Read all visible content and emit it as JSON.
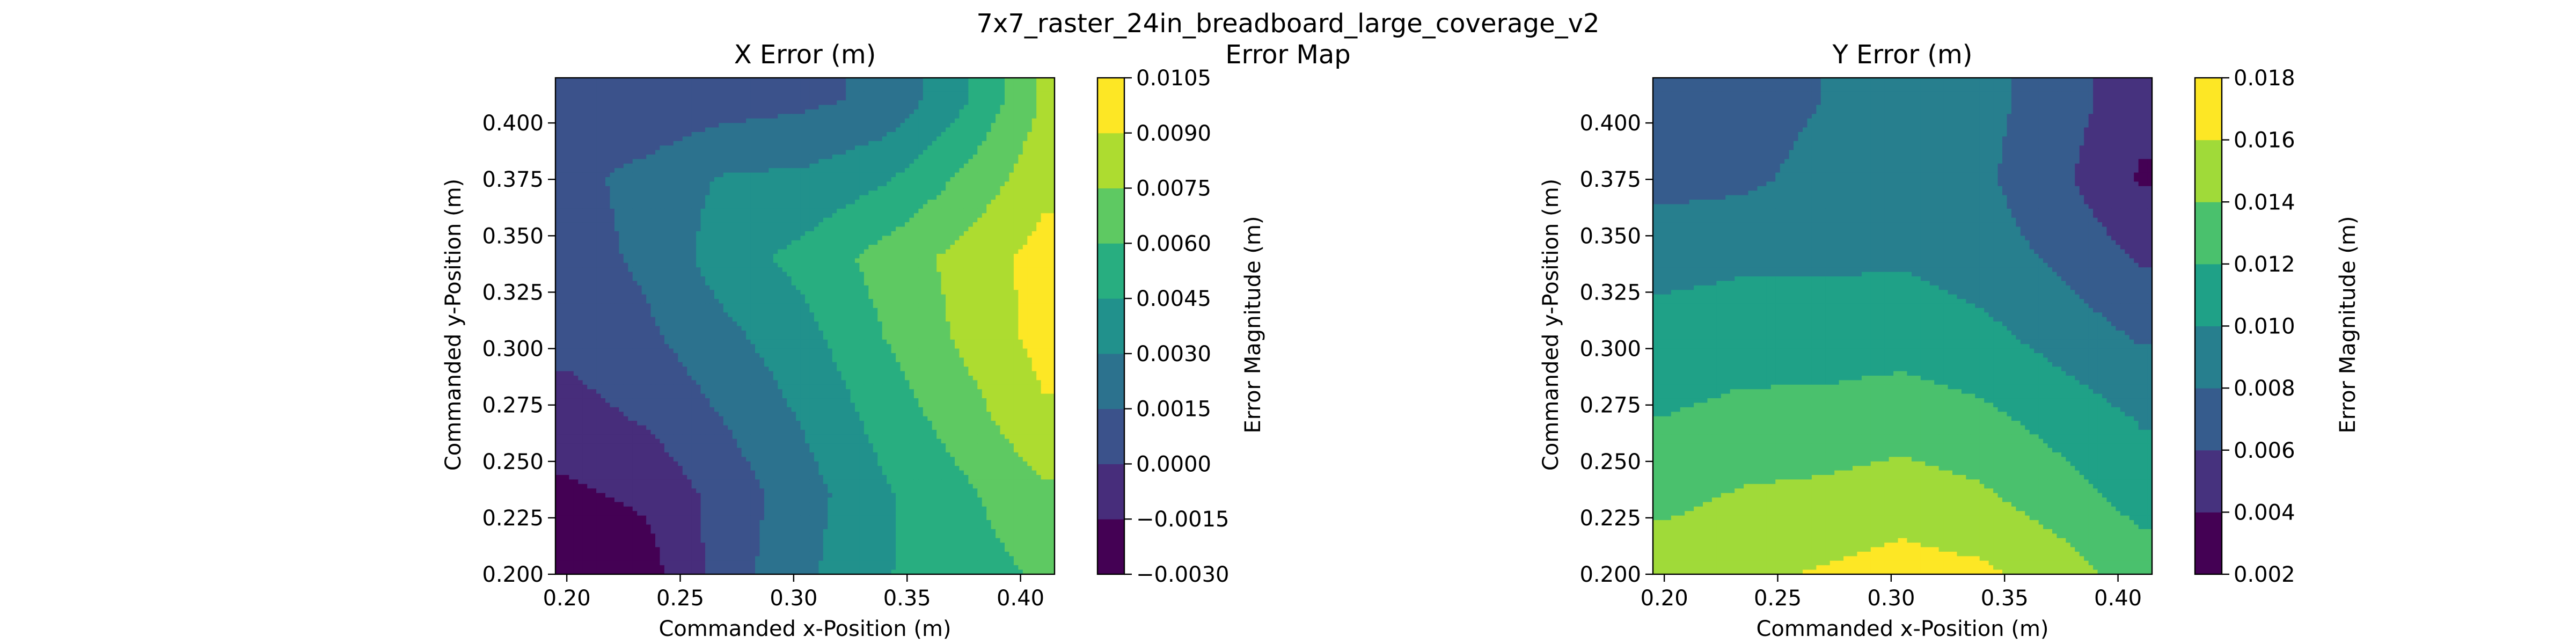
{
  "figure": {
    "title_line1": "7x7_raster_24in_breadboard_large_coverage_v2",
    "title_line2": "Error Map"
  },
  "chart_data": [
    {
      "type": "heatmap",
      "subtype": "filled-contour",
      "title": "X Error (m)",
      "xlabel": "Commanded x-Position (m)",
      "ylabel": "Commanded y-Position (m)",
      "colorbar_label": "Error Magnitude (m)",
      "xlim": [
        0.195,
        0.415
      ],
      "ylim": [
        0.2,
        0.42
      ],
      "x": [
        0.2,
        0.235,
        0.27,
        0.305,
        0.34,
        0.375,
        0.41
      ],
      "y": [
        0.2,
        0.235,
        0.27,
        0.305,
        0.34,
        0.375,
        0.41
      ],
      "z": [
        [
          -0.0032,
          -0.0022,
          0.0008,
          0.0027,
          0.0044,
          0.0053,
          0.0062
        ],
        [
          -0.0018,
          -0.0012,
          0.0006,
          0.0024,
          0.0043,
          0.0057,
          0.0072
        ],
        [
          -0.0006,
          0.0002,
          0.0016,
          0.0032,
          0.0051,
          0.0068,
          0.0088
        ],
        [
          0.0004,
          0.0012,
          0.0026,
          0.004,
          0.006,
          0.0078,
          0.0095
        ],
        [
          0.0008,
          0.0018,
          0.0038,
          0.005,
          0.0066,
          0.008,
          0.0096
        ],
        [
          0.001,
          0.002,
          0.0032,
          0.0033,
          0.0043,
          0.0063,
          0.0085
        ],
        [
          0.001,
          0.0003,
          0.0008,
          0.0012,
          0.0018,
          0.0043,
          0.0077
        ]
      ],
      "levels": [
        -0.003,
        -0.0015,
        0.0,
        0.0015,
        0.003,
        0.0045,
        0.006,
        0.0075,
        0.009,
        0.0105
      ],
      "colorbar_ticks": [
        "−0.0030",
        "−0.0015",
        "0.0000",
        "0.0015",
        "0.0030",
        "0.0045",
        "0.0060",
        "0.0075",
        "0.0090",
        "0.0105"
      ],
      "xticks": [
        "0.20",
        "0.25",
        "0.30",
        "0.35",
        "0.40"
      ],
      "xtick_values": [
        0.2,
        0.25,
        0.3,
        0.35,
        0.4
      ],
      "yticks": [
        "0.200",
        "0.225",
        "0.250",
        "0.275",
        "0.300",
        "0.325",
        "0.350",
        "0.375",
        "0.400"
      ],
      "ytick_values": [
        0.2,
        0.225,
        0.25,
        0.275,
        0.3,
        0.325,
        0.35,
        0.375,
        0.4
      ],
      "colormap": [
        "#440154",
        "#472d7b",
        "#3b528b",
        "#2c728e",
        "#21918c",
        "#28ae80",
        "#5ec962",
        "#addc30",
        "#fde725"
      ]
    },
    {
      "type": "heatmap",
      "subtype": "filled-contour",
      "title": "Y Error (m)",
      "xlabel": "Commanded x-Position (m)",
      "ylabel": "Commanded y-Position (m)",
      "colorbar_label": "Error Magnitude (m)",
      "xlim": [
        0.195,
        0.415
      ],
      "ylim": [
        0.2,
        0.42
      ],
      "x": [
        0.2,
        0.235,
        0.27,
        0.305,
        0.34,
        0.375,
        0.41
      ],
      "y": [
        0.2,
        0.235,
        0.27,
        0.305,
        0.34,
        0.375,
        0.41
      ],
      "z": [
        [
          0.015,
          0.0156,
          0.0162,
          0.0168,
          0.0164,
          0.015,
          0.013
        ],
        [
          0.0135,
          0.0142,
          0.0145,
          0.015,
          0.0143,
          0.0128,
          0.0112
        ],
        [
          0.012,
          0.0124,
          0.0125,
          0.013,
          0.0124,
          0.0112,
          0.0098
        ],
        [
          0.011,
          0.0113,
          0.0112,
          0.0112,
          0.0106,
          0.0092,
          0.0078
        ],
        [
          0.0092,
          0.0096,
          0.0096,
          0.0098,
          0.009,
          0.0076,
          0.0058
        ],
        [
          0.0074,
          0.0076,
          0.0086,
          0.0092,
          0.0084,
          0.0064,
          0.0038
        ],
        [
          0.007,
          0.0072,
          0.008,
          0.009,
          0.0086,
          0.007,
          0.0046
        ]
      ],
      "levels": [
        0.002,
        0.004,
        0.006,
        0.008,
        0.01,
        0.012,
        0.014,
        0.016,
        0.018
      ],
      "colorbar_ticks": [
        "0.002",
        "0.004",
        "0.006",
        "0.008",
        "0.010",
        "0.012",
        "0.014",
        "0.016",
        "0.018"
      ],
      "xticks": [
        "0.20",
        "0.25",
        "0.30",
        "0.35",
        "0.40"
      ],
      "xtick_values": [
        0.2,
        0.25,
        0.3,
        0.35,
        0.4
      ],
      "yticks": [
        "0.200",
        "0.225",
        "0.250",
        "0.275",
        "0.300",
        "0.325",
        "0.350",
        "0.375",
        "0.400"
      ],
      "ytick_values": [
        0.2,
        0.225,
        0.25,
        0.275,
        0.3,
        0.325,
        0.35,
        0.375,
        0.4
      ],
      "colormap": [
        "#440154",
        "#46327e",
        "#365c8d",
        "#277f8e",
        "#1fa187",
        "#4ac16d",
        "#a0da39",
        "#fde725"
      ]
    }
  ]
}
